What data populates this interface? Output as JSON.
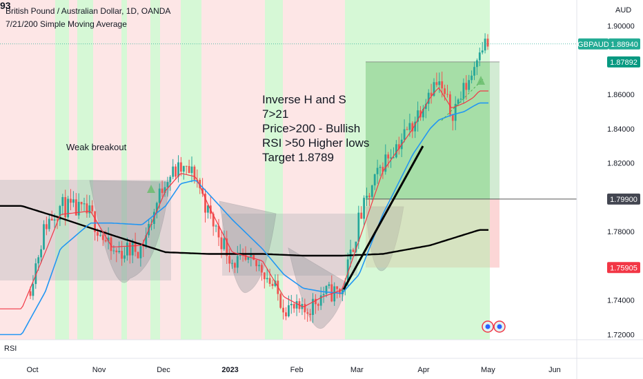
{
  "header": {
    "cut_symbol": "93",
    "title": "British Pound / Australian Dollar, 1D, OANDA",
    "indicator": "7/21/200 Simple Moving Average"
  },
  "price_scale": {
    "currency": "AUD",
    "ticks": [
      "1.90000",
      "1.88000",
      "1.86000",
      "1.84000",
      "1.82000",
      "1.80000",
      "1.78000",
      "1.76000",
      "1.74000",
      "1.72000"
    ],
    "tick_values": [
      1.9,
      1.88,
      1.86,
      1.84,
      1.82,
      1.8,
      1.78,
      1.76,
      1.74,
      1.72
    ]
  },
  "tags": {
    "symbol": "GBPAUD",
    "last_price": "1.88940",
    "target": "1.87892",
    "entry": "1.79900",
    "stop": "1.75905"
  },
  "annotations": {
    "main_lines": [
      "Inverse H and S",
      "7>21",
      "Price>200 - Bullish",
      "RSI >50 Higher lows",
      "Target 1.8789"
    ],
    "weak_breakout": "Weak breakout"
  },
  "rsi_label": "RSI",
  "colors": {
    "up": "#26a69a",
    "down": "#ef5350",
    "sma7": "#f23645",
    "sma21": "#2196f3",
    "sma200": "#000000",
    "bull_band": "#c8f5c8",
    "bear_band": "#fcdede",
    "symbol_tag": "#22ab94",
    "target_tag": "#089981",
    "entry_tag": "#434651",
    "stop_tag": "#f23645"
  },
  "chart_data": {
    "type": "candlestick",
    "symbol": "GBPAUD",
    "timeframe": "1D",
    "x_tick_labels": [
      "Oct",
      "Nov",
      "Dec",
      "2023",
      "Feb",
      "Mar",
      "Apr",
      "May",
      "Jun"
    ],
    "ylim": [
      1.717,
      1.911
    ],
    "close_anchors": {
      "dates": [
        "Sep 26",
        "Oct 7",
        "Oct 14",
        "Oct 28",
        "Nov 7",
        "Nov 21",
        "Dec 2",
        "Dec 9",
        "Dec 16",
        "Dec 22",
        "Jan 2",
        "Jan 16",
        "Jan 26",
        "Feb 4",
        "Feb 13",
        "Feb 22",
        "Mar 2",
        "Mar 13",
        "Mar 27",
        "Apr 4",
        "Apr 8",
        "Apr 14",
        "Apr 20",
        "Apr 24",
        "Apr 27"
      ],
      "values": [
        1.728,
        1.784,
        1.795,
        1.79,
        1.767,
        1.771,
        1.812,
        1.816,
        1.813,
        1.79,
        1.763,
        1.759,
        1.737,
        1.732,
        1.744,
        1.745,
        1.787,
        1.82,
        1.843,
        1.864,
        1.866,
        1.849,
        1.863,
        1.874,
        1.8894
      ]
    },
    "sma7": {
      "dates": [
        "Sep 26",
        "Oct 7",
        "Oct 14",
        "Oct 28",
        "Nov 7",
        "Nov 21",
        "Dec 2",
        "Dec 9",
        "Dec 16",
        "Dec 22",
        "Jan 2",
        "Jan 16",
        "Jan 26",
        "Feb 4",
        "Feb 13",
        "Feb 22",
        "Mar 2",
        "Mar 13",
        "Mar 27",
        "Apr 4",
        "Apr 8",
        "Apr 14",
        "Apr 20",
        "Apr 24",
        "Apr 27"
      ],
      "values": [
        1.735,
        1.768,
        1.79,
        1.792,
        1.771,
        1.772,
        1.804,
        1.814,
        1.812,
        1.795,
        1.768,
        1.763,
        1.742,
        1.736,
        1.742,
        1.746,
        1.775,
        1.815,
        1.84,
        1.858,
        1.864,
        1.852,
        1.855,
        1.858,
        1.862
      ]
    },
    "sma21": {
      "dates": [
        "Sep 26",
        "Oct 7",
        "Oct 14",
        "Oct 28",
        "Nov 7",
        "Nov 21",
        "Dec 2",
        "Dec 9",
        "Dec 16",
        "Dec 22",
        "Jan 2",
        "Jan 16",
        "Jan 26",
        "Feb 4",
        "Feb 13",
        "Feb 22",
        "Mar 2",
        "Mar 13",
        "Mar 27",
        "Apr 4",
        "Apr 8",
        "Apr 14",
        "Apr 20",
        "Apr 24",
        "Apr 27"
      ],
      "values": [
        1.72,
        1.745,
        1.77,
        1.785,
        1.785,
        1.784,
        1.795,
        1.808,
        1.81,
        1.802,
        1.787,
        1.77,
        1.755,
        1.747,
        1.745,
        1.744,
        1.755,
        1.79,
        1.825,
        1.84,
        1.845,
        1.848,
        1.85,
        1.853,
        1.855
      ]
    },
    "sma200": {
      "dates": [
        "Sep 26",
        "Oct 14",
        "Nov 7",
        "Dec 2",
        "Dec 22",
        "Jan 16",
        "Feb 4",
        "Feb 22",
        "Mar 13",
        "Apr 4",
        "Apr 27"
      ],
      "values": [
        1.795,
        1.788,
        1.778,
        1.768,
        1.767,
        1.767,
        1.766,
        1.766,
        1.767,
        1.772,
        1.781
      ]
    },
    "position": {
      "target": 1.87892,
      "entry": 1.799,
      "stop": 1.75905
    }
  }
}
